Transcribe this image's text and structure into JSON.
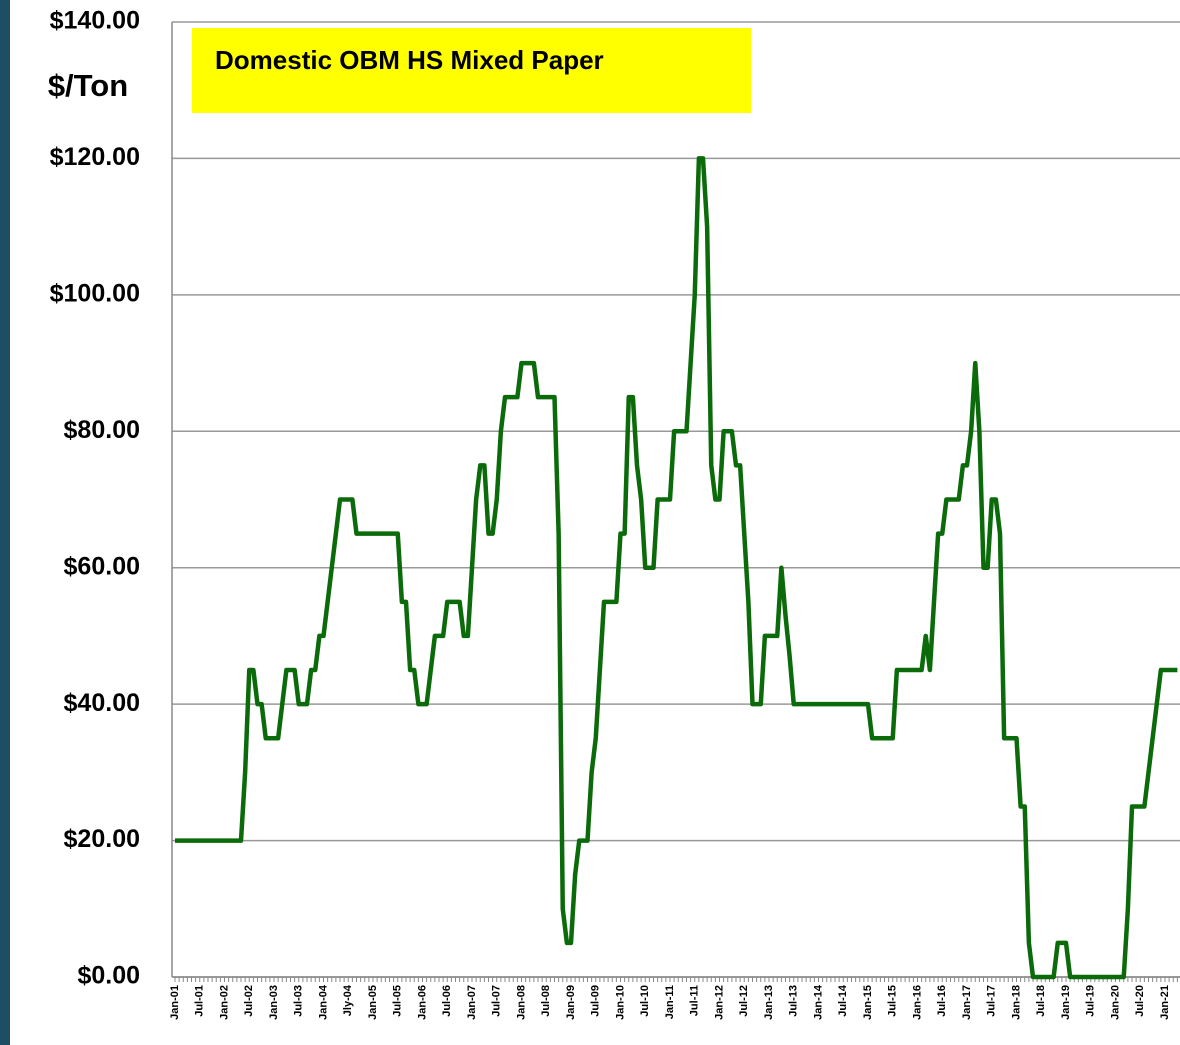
{
  "chart_data": {
    "type": "line",
    "title": "Domestic OBM HS Mixed Paper",
    "ylabel": "$/Ton",
    "color": "#0b6b0b",
    "categories": [
      "Jan-01",
      null,
      null,
      null,
      null,
      null,
      "Jul-01",
      null,
      null,
      null,
      null,
      null,
      "Jan-02",
      null,
      null,
      null,
      null,
      null,
      "Jul-02",
      null,
      null,
      null,
      null,
      null,
      "Jan-03",
      null,
      null,
      null,
      null,
      null,
      "Jul-03",
      null,
      null,
      null,
      null,
      null,
      "Jan-04",
      null,
      null,
      null,
      null,
      null,
      "Jly-04",
      null,
      null,
      null,
      null,
      null,
      "Jan-05",
      null,
      null,
      null,
      null,
      null,
      "Jul-05",
      null,
      null,
      null,
      null,
      null,
      "Jan-06",
      null,
      null,
      null,
      null,
      null,
      "Jul-06",
      null,
      null,
      null,
      null,
      null,
      "Jan-07",
      null,
      null,
      null,
      null,
      null,
      "Jul-07",
      null,
      null,
      null,
      null,
      null,
      "Jan-08",
      null,
      null,
      null,
      null,
      null,
      "Jul-08",
      null,
      null,
      null,
      null,
      null,
      "Jan-09",
      null,
      null,
      null,
      null,
      null,
      "Jul-09",
      null,
      null,
      null,
      null,
      null,
      "Jan-10",
      null,
      null,
      null,
      null,
      null,
      "Jul-10",
      null,
      null,
      null,
      null,
      null,
      "Jan-11",
      null,
      null,
      null,
      null,
      null,
      "Jul-11",
      null,
      null,
      null,
      null,
      null,
      "Jan-12",
      null,
      null,
      null,
      null,
      null,
      "Jul-12",
      null,
      null,
      null,
      null,
      null,
      "Jan-13",
      null,
      null,
      null,
      null,
      null,
      "Jul-13",
      null,
      null,
      null,
      null,
      null,
      "Jan-14",
      null,
      null,
      null,
      null,
      null,
      "Jul-14",
      null,
      null,
      null,
      null,
      null,
      "Jan-15",
      null,
      null,
      null,
      null,
      null,
      "Jul-15",
      null,
      null,
      null,
      null,
      null,
      "Jan-16",
      null,
      null,
      null,
      null,
      null,
      "Jul-16",
      null,
      null,
      null,
      null,
      null,
      "Jan-17",
      null,
      null,
      null,
      null,
      null,
      "Jul-17",
      null,
      null,
      null,
      null,
      null,
      "Jan-18",
      null,
      null,
      null,
      null,
      null,
      "Jul-18",
      null,
      null,
      null,
      null,
      null,
      "Jan-19",
      null,
      null,
      null,
      null,
      null,
      "Jul-19",
      null,
      null,
      null,
      null,
      null,
      "Jan-20",
      null,
      null,
      null,
      null,
      null,
      "Jul-20",
      null,
      null,
      null,
      null,
      null,
      "Jan-21",
      null,
      null,
      null
    ],
    "values": [
      20,
      20,
      20,
      20,
      20,
      20,
      20,
      20,
      20,
      20,
      20,
      20,
      20,
      20,
      20,
      20,
      20,
      30,
      45,
      45,
      40,
      40,
      35,
      35,
      35,
      35,
      40,
      45,
      45,
      45,
      40,
      40,
      40,
      45,
      45,
      50,
      50,
      55,
      60,
      65,
      70,
      70,
      70,
      70,
      65,
      65,
      65,
      65,
      65,
      65,
      65,
      65,
      65,
      65,
      65,
      55,
      55,
      45,
      45,
      40,
      40,
      40,
      45,
      50,
      50,
      50,
      55,
      55,
      55,
      55,
      50,
      50,
      60,
      70,
      75,
      75,
      65,
      65,
      70,
      80,
      85,
      85,
      85,
      85,
      90,
      90,
      90,
      90,
      85,
      85,
      85,
      85,
      85,
      65,
      10,
      5,
      5,
      15,
      20,
      20,
      20,
      30,
      35,
      45,
      55,
      55,
      55,
      55,
      65,
      65,
      85,
      85,
      75,
      70,
      60,
      60,
      60,
      70,
      70,
      70,
      70,
      80,
      80,
      80,
      80,
      90,
      100,
      120,
      120,
      110,
      75,
      70,
      70,
      80,
      80,
      80,
      75,
      75,
      65,
      55,
      40,
      40,
      40,
      50,
      50,
      50,
      50,
      60,
      53,
      47,
      40,
      40,
      40,
      40,
      40,
      40,
      40,
      40,
      40,
      40,
      40,
      40,
      40,
      40,
      40,
      40,
      40,
      40,
      40,
      35,
      35,
      35,
      35,
      35,
      35,
      45,
      45,
      45,
      45,
      45,
      45,
      45,
      50,
      45,
      55,
      65,
      65,
      70,
      70,
      70,
      70,
      75,
      75,
      80,
      90,
      80,
      60,
      60,
      70,
      70,
      65,
      35,
      35,
      35,
      35,
      25,
      25,
      5,
      0,
      0,
      0,
      0,
      0,
      0,
      5,
      5,
      5,
      0,
      0,
      0,
      0,
      0,
      0,
      0,
      0,
      0,
      0,
      0,
      0,
      0,
      0,
      10,
      25,
      25,
      25,
      25,
      30,
      35,
      40,
      45,
      45,
      45,
      45,
      45
    ],
    "ylim": [
      0,
      140
    ],
    "yticks": [
      {
        "value": 0,
        "label": "$0.00"
      },
      {
        "value": 20,
        "label": "$20.00"
      },
      {
        "value": 40,
        "label": "$40.00"
      },
      {
        "value": 60,
        "label": "$60.00"
      },
      {
        "value": 80,
        "label": "$80.00"
      },
      {
        "value": 100,
        "label": "$100.00"
      },
      {
        "value": 120,
        "label": "$120.00"
      },
      {
        "value": 140,
        "label": "$140.00"
      }
    ],
    "grid": true
  }
}
